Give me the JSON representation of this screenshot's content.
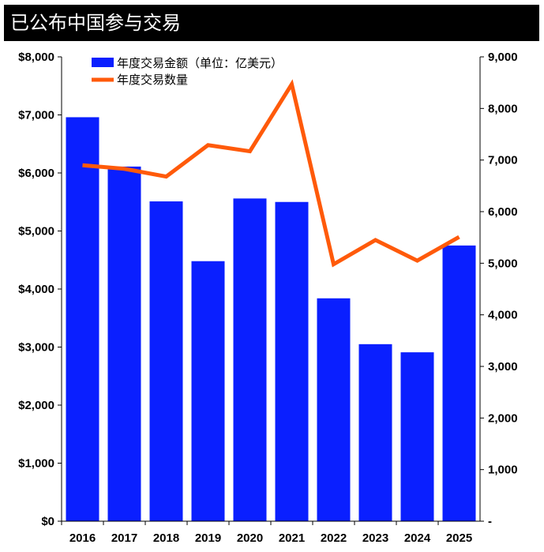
{
  "title": "已公布中国参与交易",
  "chart_data": {
    "type": "bar+line",
    "title": "已公布中国参与交易",
    "categories": [
      "2016",
      "2017",
      "2018",
      "2019",
      "2020",
      "2021",
      "2022",
      "2023",
      "2024",
      "2025"
    ],
    "series": [
      {
        "name": "年度交易金额（单位：亿美元）",
        "type": "bar",
        "axis": "left",
        "color": "#0a1fff",
        "values": [
          6960,
          6110,
          5510,
          4480,
          5560,
          5500,
          3840,
          3050,
          2910,
          4750
        ]
      },
      {
        "name": "年度交易数量",
        "type": "line",
        "axis": "right",
        "color": "#ff5a0a",
        "values": [
          6900,
          6830,
          6680,
          7290,
          7170,
          8470,
          4980,
          5450,
          5050,
          5510
        ]
      }
    ],
    "left_axis": {
      "ylim": [
        0,
        8000
      ],
      "ticks": [
        "$0",
        "$1,000",
        "$2,000",
        "$3,000",
        "$4,000",
        "$5,000",
        "$6,000",
        "$7,000",
        "$8,000"
      ]
    },
    "right_axis": {
      "ylim": [
        0,
        9000
      ],
      "ticks": [
        "-",
        "1,000",
        "2,000",
        "3,000",
        "4,000",
        "5,000",
        "6,000",
        "7,000",
        "8,000",
        "9,000"
      ]
    },
    "grid": false,
    "legend_placement": "top-left"
  }
}
